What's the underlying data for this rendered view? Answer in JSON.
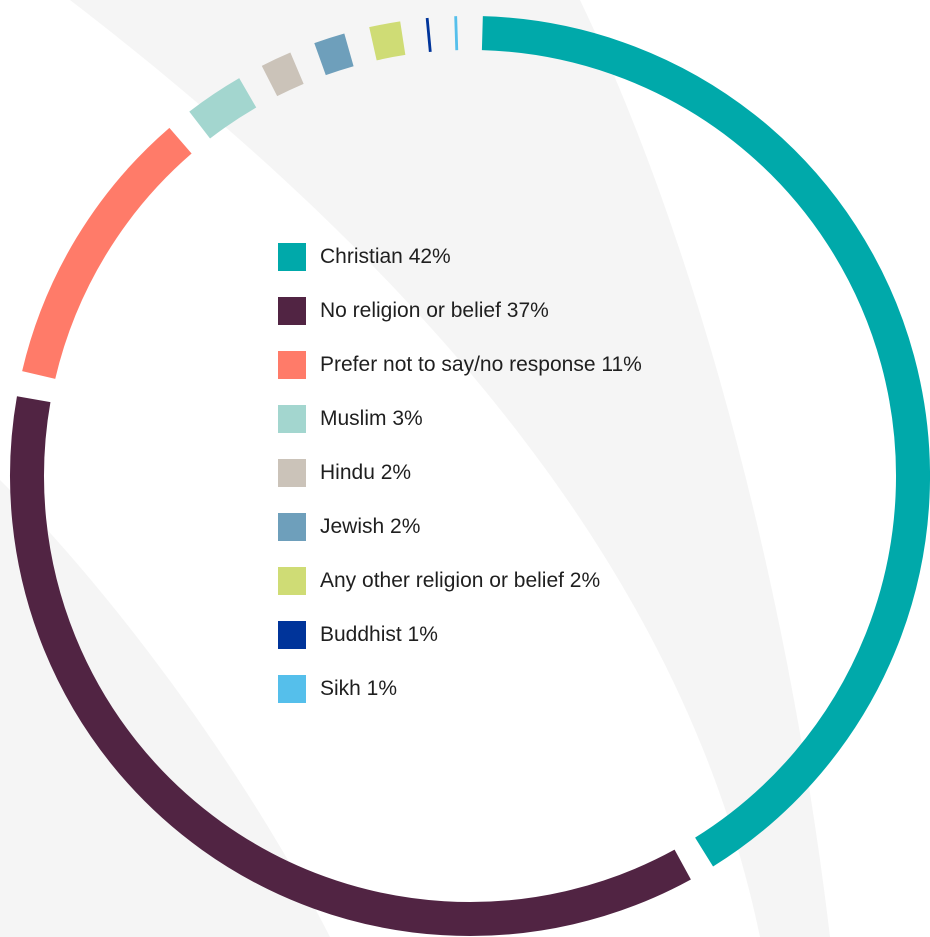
{
  "chart_data": {
    "type": "pie",
    "title": "",
    "categories": [
      "Christian",
      "No religion or belief",
      "Prefer not to say/no response",
      "Muslim",
      "Hindu",
      "Jewish",
      "Any other religion or belief",
      "Buddhist",
      "Sikh"
    ],
    "values": [
      42,
      37,
      11,
      3,
      2,
      2,
      2,
      1,
      1
    ],
    "labels": [
      "Christian 42%",
      "No religion or belief 37%",
      "Prefer not to say/no response 11%",
      "Muslim 3%",
      "Hindu 2%",
      "Jewish 2%",
      "Any other religion or belief 2%",
      "Buddhist 1%",
      "Sikh 1%"
    ],
    "colors": [
      "#00a9aa",
      "#512443",
      "#ff7b69",
      "#a3d6cf",
      "#cbc3b9",
      "#6e9fbb",
      "#cfdc75",
      "#00349a",
      "#55bfeb"
    ],
    "style": "donut ring",
    "legend_position": "center"
  }
}
